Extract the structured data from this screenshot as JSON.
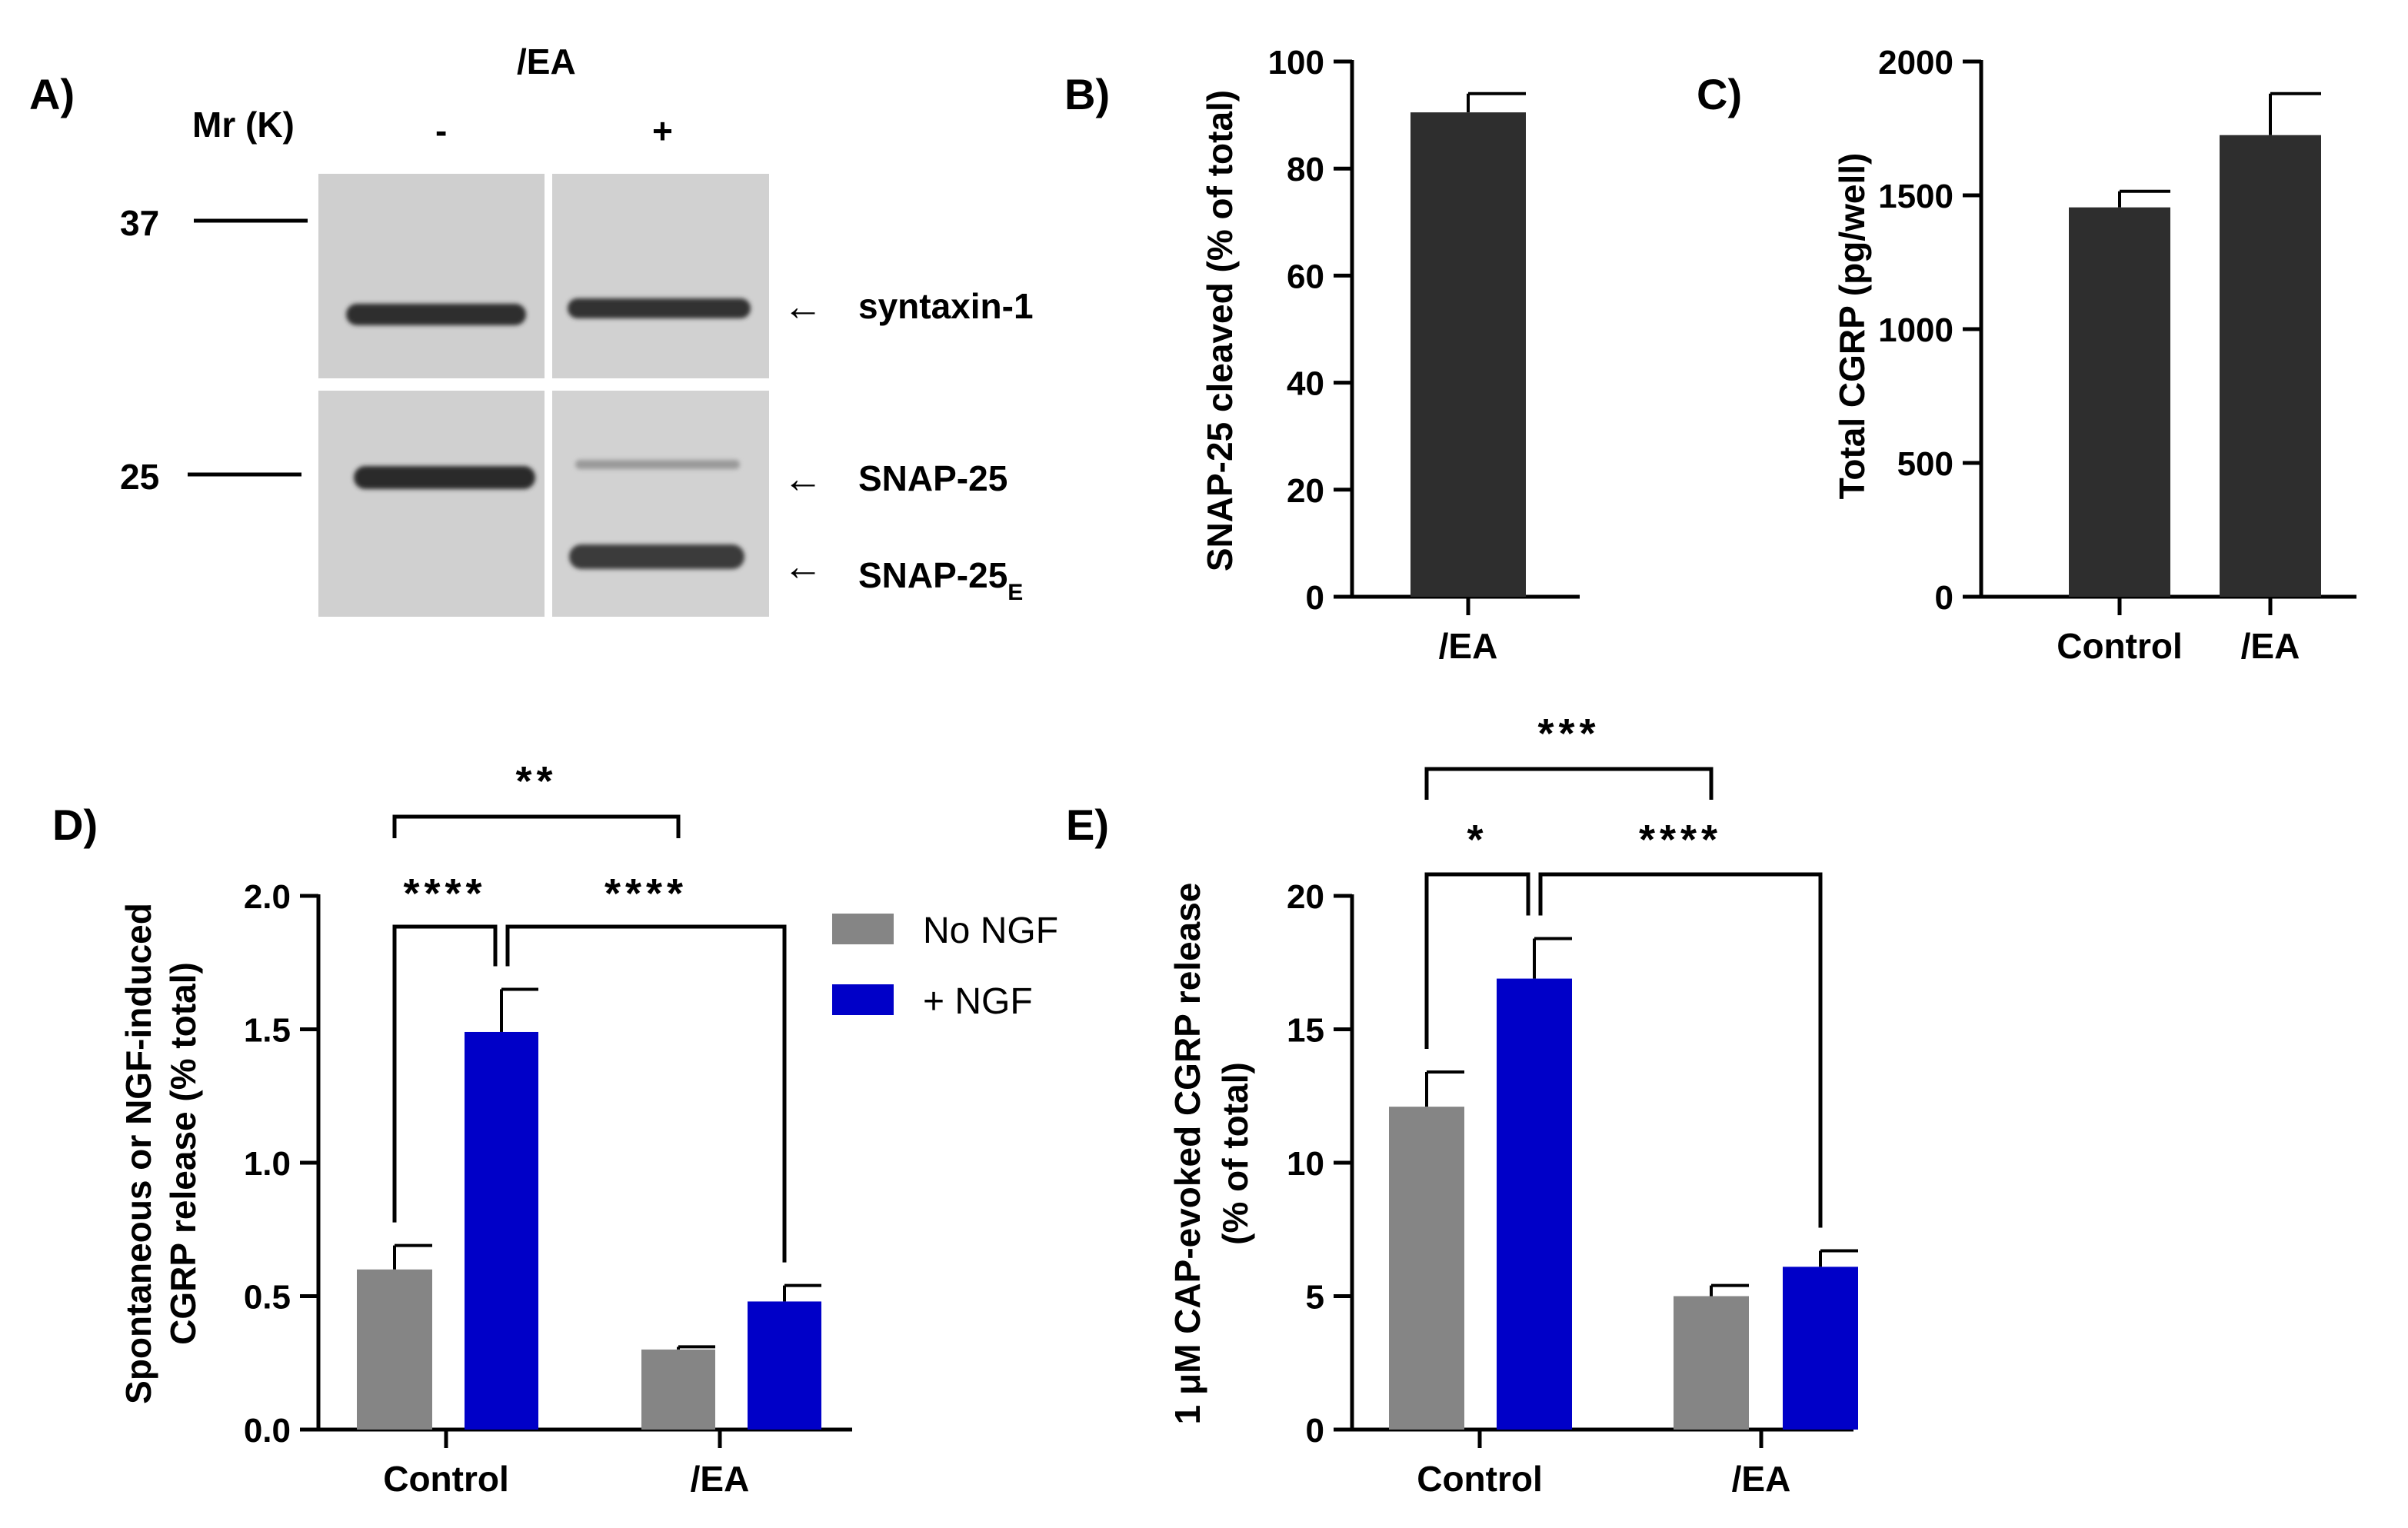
{
  "panel_labels": {
    "a": "A)",
    "b": "B)",
    "c": "C)",
    "d": "D)",
    "e": "E)"
  },
  "blot": {
    "treatment_label": "/EA",
    "mr_label": "Mr (K)",
    "lane_minus": "-",
    "lane_plus": "+",
    "marker_37": "37",
    "marker_25": "25",
    "band_syntaxin": "syntaxin-1",
    "band_snap25": "SNAP-25",
    "band_snap25e_main": "SNAP-25",
    "band_snap25e_sub": "E",
    "arrow_glyph": "←"
  },
  "colors": {
    "gray": "#858585",
    "blue": "#0000c8",
    "dark": "#2e2e2e",
    "axis": "#000000"
  },
  "chart_data": [
    {
      "id": "B",
      "type": "bar",
      "title": "",
      "ylabel": "SNAP-25 cleaved (% of total)",
      "categories": [
        "/EA"
      ],
      "values": [
        90.5
      ],
      "errors": [
        3.5
      ],
      "ylim": [
        0,
        100
      ],
      "yticks": [
        0,
        20,
        40,
        60,
        80,
        100
      ],
      "ytick_labels": [
        "0",
        "20",
        "40",
        "60",
        "80",
        "100"
      ]
    },
    {
      "id": "C",
      "type": "bar",
      "title": "",
      "ylabel": "Total CGRP (pg/well)",
      "categories": [
        "Control",
        "/EA"
      ],
      "values": [
        1455,
        1725
      ],
      "errors": [
        60,
        155
      ],
      "ylim": [
        0,
        2000
      ],
      "yticks": [
        0,
        500,
        1000,
        1500,
        2000
      ],
      "ytick_labels": [
        "0",
        "500",
        "1000",
        "1500",
        "2000"
      ]
    },
    {
      "id": "D",
      "type": "bar",
      "title": "",
      "ylabel_line1": "Spontaneous or NGF-induced",
      "ylabel_line2": "CGRP release (% total)",
      "categories": [
        "Control",
        "/EA"
      ],
      "series": [
        {
          "name": "No NGF",
          "values": [
            0.6,
            0.3
          ],
          "errors": [
            0.09,
            0.01
          ]
        },
        {
          "name": "+ NGF",
          "values": [
            1.49,
            0.48
          ],
          "errors": [
            0.16,
            0.06
          ]
        }
      ],
      "legend": [
        "No NGF",
        "+ NGF"
      ],
      "legend_position": "right",
      "ylim": [
        0,
        2.0
      ],
      "yticks": [
        0,
        0.5,
        1.0,
        1.5,
        2.0
      ],
      "ytick_labels": [
        "0.0",
        "0.5",
        "1.0",
        "1.5",
        "2.0"
      ],
      "significance": [
        "**",
        "****",
        "****"
      ]
    },
    {
      "id": "E",
      "type": "bar",
      "title": "",
      "ylabel_line1": "1 μM CAP-evoked CGRP release",
      "ylabel_line2": "(% of total)",
      "categories": [
        "Control",
        "/EA"
      ],
      "series": [
        {
          "name": "No NGF",
          "values": [
            12.1,
            5.0
          ],
          "errors": [
            1.3,
            0.4
          ]
        },
        {
          "name": "+ NGF",
          "values": [
            16.9,
            6.1
          ],
          "errors": [
            1.5,
            0.6
          ]
        }
      ],
      "ylim": [
        0,
        20
      ],
      "yticks": [
        0,
        5,
        10,
        15,
        20
      ],
      "ytick_labels": [
        "0",
        "5",
        "10",
        "15",
        "20"
      ],
      "significance": [
        "***",
        "*",
        "****"
      ]
    }
  ]
}
